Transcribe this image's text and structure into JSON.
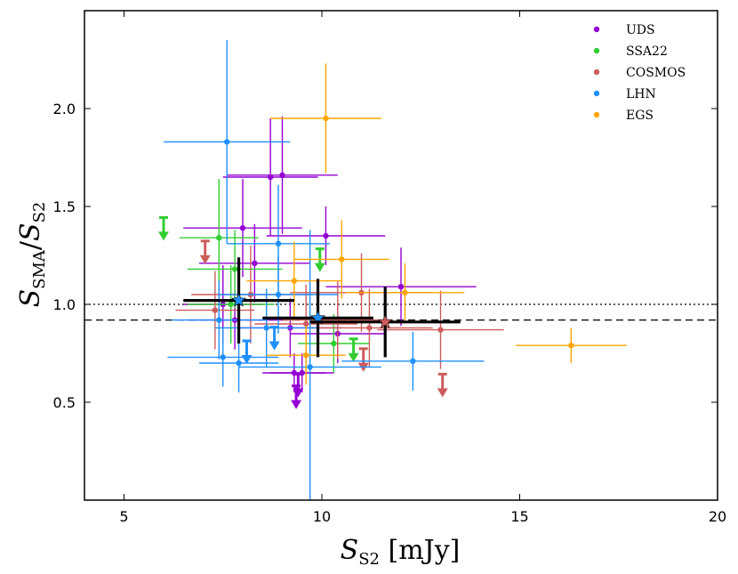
{
  "chart_data": {
    "type": "scatter",
    "title": "",
    "xlabel": "S_S2 [mJy]",
    "ylabel": "S_SMA / S_S2",
    "xlim": [
      4,
      20
    ],
    "ylim": [
      0,
      2.5
    ],
    "x_ticks": [
      5,
      10,
      15,
      20
    ],
    "y_ticks": [
      0.5,
      1.0,
      1.5,
      2.0
    ],
    "x_tick_labels": [
      "5",
      "10",
      "15",
      "20"
    ],
    "y_tick_labels": [
      "0.5",
      "1.0",
      "1.5",
      "2.0"
    ],
    "grid": false,
    "legend_position": "top-right",
    "reference_lines": [
      {
        "y": 1.0,
        "style": "dotted"
      },
      {
        "y": 0.92,
        "style": "dashed"
      }
    ],
    "series": [
      {
        "name": "UDS",
        "color": "#9400d3",
        "points": [
          {
            "x": 8.7,
            "y": 1.65,
            "xerr": 1.2,
            "yerr": 0.3
          },
          {
            "x": 9.0,
            "y": 1.66,
            "xerr": 1.4,
            "yerr": 0.3
          },
          {
            "x": 8.0,
            "y": 1.39,
            "xerr": 1.5,
            "yerr": 0.25
          },
          {
            "x": 10.1,
            "y": 1.35,
            "xerr": 1.5,
            "yerr": 0.15
          },
          {
            "x": 8.3,
            "y": 1.21,
            "xerr": 1.4,
            "yerr": 0.2
          },
          {
            "x": 12.0,
            "y": 1.09,
            "xerr": 1.9,
            "yerr": 0.2
          },
          {
            "x": 7.5,
            "y": 1.0,
            "xerr": 1.0,
            "yerr": 0.2
          },
          {
            "x": 7.8,
            "y": 0.92,
            "xerr": 1.2,
            "yerr": 0.15
          },
          {
            "x": 9.2,
            "y": 0.88,
            "xerr": 1.3,
            "yerr": 0.15
          },
          {
            "x": 10.4,
            "y": 0.85,
            "xerr": 1.2,
            "yerr": 0.15
          },
          {
            "x": 9.3,
            "y": 0.65,
            "xerr": 0.8,
            "yerr": 0.1
          },
          {
            "x": 9.5,
            "y": 0.65,
            "xerr": 0.8,
            "yerr": 0.1
          },
          {
            "x": 9.4,
            "y": 0.58,
            "upper_limit": true
          },
          {
            "x": 9.35,
            "y": 0.52,
            "upper_limit": true
          }
        ]
      },
      {
        "name": "SSA22",
        "color": "#32cd32",
        "points": [
          {
            "x": 7.4,
            "y": 1.34,
            "xerr": 1.0,
            "yerr": 0.3
          },
          {
            "x": 7.8,
            "y": 1.18,
            "xerr": 1.2,
            "yerr": 0.2
          },
          {
            "x": 7.7,
            "y": 1.0,
            "xerr": 1.1,
            "yerr": 0.2
          },
          {
            "x": 10.3,
            "y": 0.8,
            "xerr": 0.9,
            "yerr": 0.15
          },
          {
            "x": 6.0,
            "y": 1.38,
            "upper_limit": true
          },
          {
            "x": 9.95,
            "y": 1.22,
            "upper_limit": true
          },
          {
            "x": 10.8,
            "y": 0.76,
            "upper_limit": true
          }
        ]
      },
      {
        "name": "COSMOS",
        "color": "#cd5c5c",
        "points": [
          {
            "x": 8.2,
            "y": 1.05,
            "xerr": 1.5,
            "yerr": 0.25
          },
          {
            "x": 11.0,
            "y": 1.06,
            "xerr": 1.8,
            "yerr": 0.2
          },
          {
            "x": 7.3,
            "y": 0.97,
            "xerr": 1.0,
            "yerr": 0.2
          },
          {
            "x": 9.6,
            "y": 0.9,
            "xerr": 1.3,
            "yerr": 0.2
          },
          {
            "x": 10.4,
            "y": 0.92,
            "xerr": 1.4,
            "yerr": 0.2
          },
          {
            "x": 11.2,
            "y": 0.88,
            "xerr": 1.6,
            "yerr": 0.2
          },
          {
            "x": 13.0,
            "y": 0.87,
            "xerr": 1.6,
            "yerr": 0.2
          },
          {
            "x": 7.05,
            "y": 1.26,
            "upper_limit": true
          },
          {
            "x": 11.05,
            "y": 0.71,
            "upper_limit": true
          },
          {
            "x": 13.05,
            "y": 0.58,
            "upper_limit": true
          }
        ]
      },
      {
        "name": "LHN",
        "color": "#1e90ff",
        "points": [
          {
            "x": 7.6,
            "y": 1.83,
            "xerr": 1.6,
            "yerr": 0.52
          },
          {
            "x": 8.9,
            "y": 1.31,
            "xerr": 1.3,
            "yerr": 0.3
          },
          {
            "x": 8.9,
            "y": 1.05,
            "xerr": 1.5,
            "yerr": 0.2
          },
          {
            "x": 7.4,
            "y": 0.92,
            "xerr": 1.2,
            "yerr": 0.2
          },
          {
            "x": 8.6,
            "y": 0.88,
            "xerr": 1.3,
            "yerr": 0.2
          },
          {
            "x": 7.5,
            "y": 0.73,
            "xerr": 1.4,
            "yerr": 0.15
          },
          {
            "x": 7.9,
            "y": 0.7,
            "xerr": 1.0,
            "yerr": 0.15
          },
          {
            "x": 9.7,
            "y": 0.68,
            "xerr": 1.8,
            "yerr": 0.7
          },
          {
            "x": 12.3,
            "y": 0.71,
            "xerr": 1.8,
            "yerr": 0.15
          },
          {
            "x": 8.1,
            "y": 0.75,
            "upper_limit": true
          },
          {
            "x": 8.8,
            "y": 0.82,
            "upper_limit": true
          }
        ]
      },
      {
        "name": "EGS",
        "color": "#ffa500",
        "points": [
          {
            "x": 10.1,
            "y": 1.95,
            "xerr": 1.4,
            "yerr": 0.28
          },
          {
            "x": 10.5,
            "y": 1.23,
            "xerr": 1.2,
            "yerr": 0.2
          },
          {
            "x": 9.3,
            "y": 1.12,
            "xerr": 1.2,
            "yerr": 0.2
          },
          {
            "x": 12.1,
            "y": 1.06,
            "xerr": 1.5,
            "yerr": 0.15
          },
          {
            "x": 9.6,
            "y": 0.74,
            "xerr": 1.0,
            "yerr": 0.15
          },
          {
            "x": 16.3,
            "y": 0.79,
            "xerr": 1.4,
            "yerr": 0.09
          }
        ]
      }
    ],
    "averages": [
      {
        "x": 7.9,
        "y": 1.02,
        "xerr": 1.4,
        "yerr": 0.22,
        "star_color": "#1e90ff"
      },
      {
        "x": 9.9,
        "y": 0.93,
        "xerr": 1.4,
        "yerr": 0.2,
        "star_color": "#1e90ff"
      },
      {
        "x": 11.6,
        "y": 0.91,
        "xerr": 1.9,
        "yerr": 0.18,
        "star_color": "#cd5c5c"
      }
    ]
  }
}
